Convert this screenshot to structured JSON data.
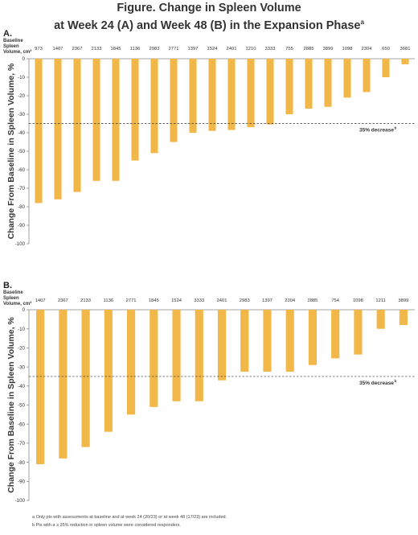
{
  "title_line1": "Figure. Change in Spleen Volume",
  "title_line2": "at Week 24 (A) and Week 48 (B) in the Expansion Phase",
  "title_sup": "a",
  "baseline_label_lines": [
    "Baseline",
    "Spleen",
    "Volume, cm³"
  ],
  "chart_data": [
    {
      "type": "bar",
      "panel": "A.",
      "ylabel": "Change From Baseline in Spleen Volume, %",
      "ylim": [
        -100,
        0
      ],
      "yticks": [
        0,
        -10,
        -20,
        -30,
        -40,
        -50,
        -60,
        -70,
        -80,
        -90,
        -100
      ],
      "categories": [
        "973",
        "1407",
        "2367",
        "2133",
        "1845",
        "1136",
        "2983",
        "2771",
        "1397",
        "1524",
        "2401",
        "1210",
        "3333",
        "755",
        "2885",
        "3899",
        "1098",
        "2304",
        "650",
        "3681"
      ],
      "values": [
        -78,
        -76,
        -72,
        -66,
        -66,
        -55,
        -51,
        -45,
        -40,
        -39,
        -38.5,
        -37,
        -35.5,
        -30,
        -27,
        -26,
        -21,
        -18,
        -10,
        -3
      ],
      "threshold": {
        "value": -35,
        "label": "35% decrease",
        "sup": "b"
      },
      "bar_color": "#f2b749"
    },
    {
      "type": "bar",
      "panel": "B.",
      "ylabel": "Change From Baseline in Spleen Volume, %",
      "ylim": [
        -100,
        0
      ],
      "yticks": [
        0,
        -10,
        -20,
        -30,
        -40,
        -50,
        -60,
        -70,
        -80,
        -90,
        -100
      ],
      "categories": [
        "1407",
        "2367",
        "2133",
        "1136",
        "2771",
        "1845",
        "1524",
        "3333",
        "2401",
        "2983",
        "1397",
        "2304",
        "2885",
        "754",
        "1098",
        "1211",
        "3899"
      ],
      "values": [
        -81,
        -78,
        -72,
        -64,
        -55,
        -51,
        -48,
        -48,
        -37,
        -32.5,
        -32.5,
        -32.5,
        -29,
        -25.5,
        -23.5,
        -10,
        -8
      ],
      "threshold": {
        "value": -35,
        "label": "35% decrease",
        "sup": "b"
      },
      "bar_color": "#f2b749"
    }
  ],
  "footnotes": [
    "a Only pts with assessments at baseline and at week 24 (20/23) or at week 48 (17/23) are included.",
    "b Pts with a ≥ 35% reduction in spleen volume were considered responders."
  ]
}
